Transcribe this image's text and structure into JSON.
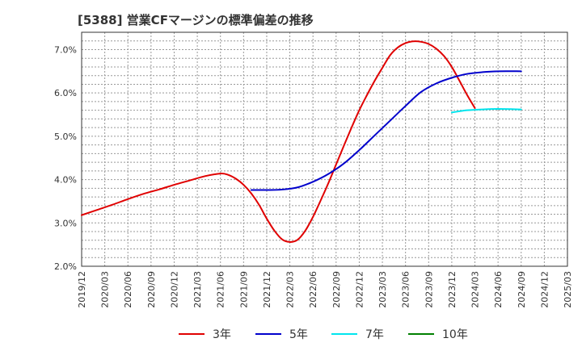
{
  "chart_data": {
    "type": "line",
    "title": "[5388]  営業CFマージンの標準偏差の推移",
    "ylim": [
      2.0,
      7.4
    ],
    "yticks": [
      2.0,
      3.0,
      4.0,
      5.0,
      6.0,
      7.0
    ],
    "ytick_labels": [
      "2.0%",
      "3.0%",
      "4.0%",
      "5.0%",
      "6.0%",
      "7.0%"
    ],
    "x_start": "2019/12",
    "x_end": "2025/03",
    "xtick_labels": [
      "2019/12",
      "2020/03",
      "2020/06",
      "2020/09",
      "2020/12",
      "2021/03",
      "2021/06",
      "2021/09",
      "2021/12",
      "2022/03",
      "2022/06",
      "2022/09",
      "2022/12",
      "2023/03",
      "2023/06",
      "2023/09",
      "2023/12",
      "2024/03",
      "2024/06",
      "2024/09",
      "2024/12",
      "2025/03"
    ],
    "grid": true,
    "legend_position": "bottom",
    "series": [
      {
        "name": "3年",
        "color": "#e00000",
        "points": [
          [
            "2019/12",
            3.18
          ],
          [
            "2020/02",
            3.3
          ],
          [
            "2020/04",
            3.42
          ],
          [
            "2020/06",
            3.55
          ],
          [
            "2020/08",
            3.67
          ],
          [
            "2020/10",
            3.77
          ],
          [
            "2020/12",
            3.88
          ],
          [
            "2021/02",
            3.98
          ],
          [
            "2021/04",
            4.08
          ],
          [
            "2021/06",
            4.14
          ],
          [
            "2021/07",
            4.11
          ],
          [
            "2021/08",
            4.02
          ],
          [
            "2021/09",
            3.88
          ],
          [
            "2021/10",
            3.68
          ],
          [
            "2021/11",
            3.42
          ],
          [
            "2021/12",
            3.1
          ],
          [
            "2022/01",
            2.82
          ],
          [
            "2022/02",
            2.62
          ],
          [
            "2022/03",
            2.56
          ],
          [
            "2022/04",
            2.61
          ],
          [
            "2022/05",
            2.82
          ],
          [
            "2022/06",
            3.14
          ],
          [
            "2022/07",
            3.52
          ],
          [
            "2022/08",
            3.92
          ],
          [
            "2022/09",
            4.35
          ],
          [
            "2022/10",
            4.78
          ],
          [
            "2022/11",
            5.2
          ],
          [
            "2022/12",
            5.6
          ],
          [
            "2023/01",
            5.95
          ],
          [
            "2023/02",
            6.28
          ],
          [
            "2023/03",
            6.58
          ],
          [
            "2023/04",
            6.87
          ],
          [
            "2023/05",
            7.05
          ],
          [
            "2023/06",
            7.15
          ],
          [
            "2023/07",
            7.19
          ],
          [
            "2023/08",
            7.18
          ],
          [
            "2023/09",
            7.13
          ],
          [
            "2023/10",
            7.02
          ],
          [
            "2023/11",
            6.85
          ],
          [
            "2023/12",
            6.6
          ],
          [
            "2024/01",
            6.28
          ],
          [
            "2024/02",
            5.95
          ],
          [
            "2024/03",
            5.65
          ]
        ]
      },
      {
        "name": "5年",
        "color": "#0000cc",
        "points": [
          [
            "2021/10",
            3.76
          ],
          [
            "2021/12",
            3.76
          ],
          [
            "2022/02",
            3.77
          ],
          [
            "2022/04",
            3.82
          ],
          [
            "2022/06",
            3.95
          ],
          [
            "2022/08",
            4.13
          ],
          [
            "2022/10",
            4.37
          ],
          [
            "2022/12",
            4.68
          ],
          [
            "2023/02",
            5.02
          ],
          [
            "2023/04",
            5.36
          ],
          [
            "2023/06",
            5.7
          ],
          [
            "2023/08",
            6.02
          ],
          [
            "2023/10",
            6.22
          ],
          [
            "2023/12",
            6.35
          ],
          [
            "2024/02",
            6.44
          ],
          [
            "2024/04",
            6.48
          ],
          [
            "2024/06",
            6.5
          ],
          [
            "2024/09",
            6.5
          ]
        ]
      },
      {
        "name": "7年",
        "color": "#00e5ee",
        "points": [
          [
            "2023/12",
            5.55
          ],
          [
            "2024/02",
            5.6
          ],
          [
            "2024/04",
            5.62
          ],
          [
            "2024/06",
            5.63
          ],
          [
            "2024/09",
            5.62
          ]
        ]
      },
      {
        "name": "10年",
        "color": "#008000",
        "points": []
      }
    ]
  }
}
